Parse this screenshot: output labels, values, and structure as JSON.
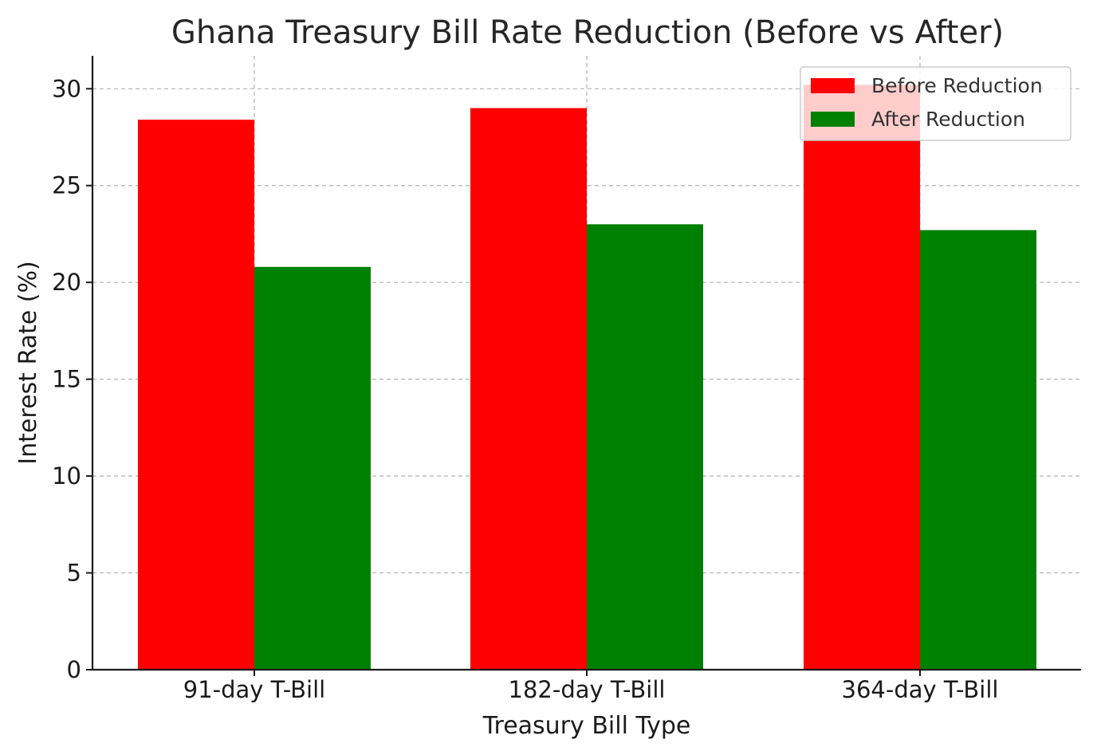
{
  "chart_data": {
    "type": "bar",
    "title": "Ghana Treasury Bill Rate Reduction (Before vs After)",
    "xlabel": "Treasury Bill Type",
    "ylabel": "Interest Rate (%)",
    "categories": [
      "91-day T-Bill",
      "182-day T-Bill",
      "364-day T-Bill"
    ],
    "series": [
      {
        "name": "Before Reduction",
        "color": "#ff0000",
        "values": [
          28.4,
          29.0,
          30.2
        ]
      },
      {
        "name": "After Reduction",
        "color": "#008000",
        "values": [
          20.8,
          23.0,
          22.7
        ]
      }
    ],
    "ylim": [
      0,
      31.7
    ],
    "yticks": [
      0,
      5,
      10,
      15,
      20,
      25,
      30
    ],
    "grid": true,
    "legend_position": "top-right"
  }
}
